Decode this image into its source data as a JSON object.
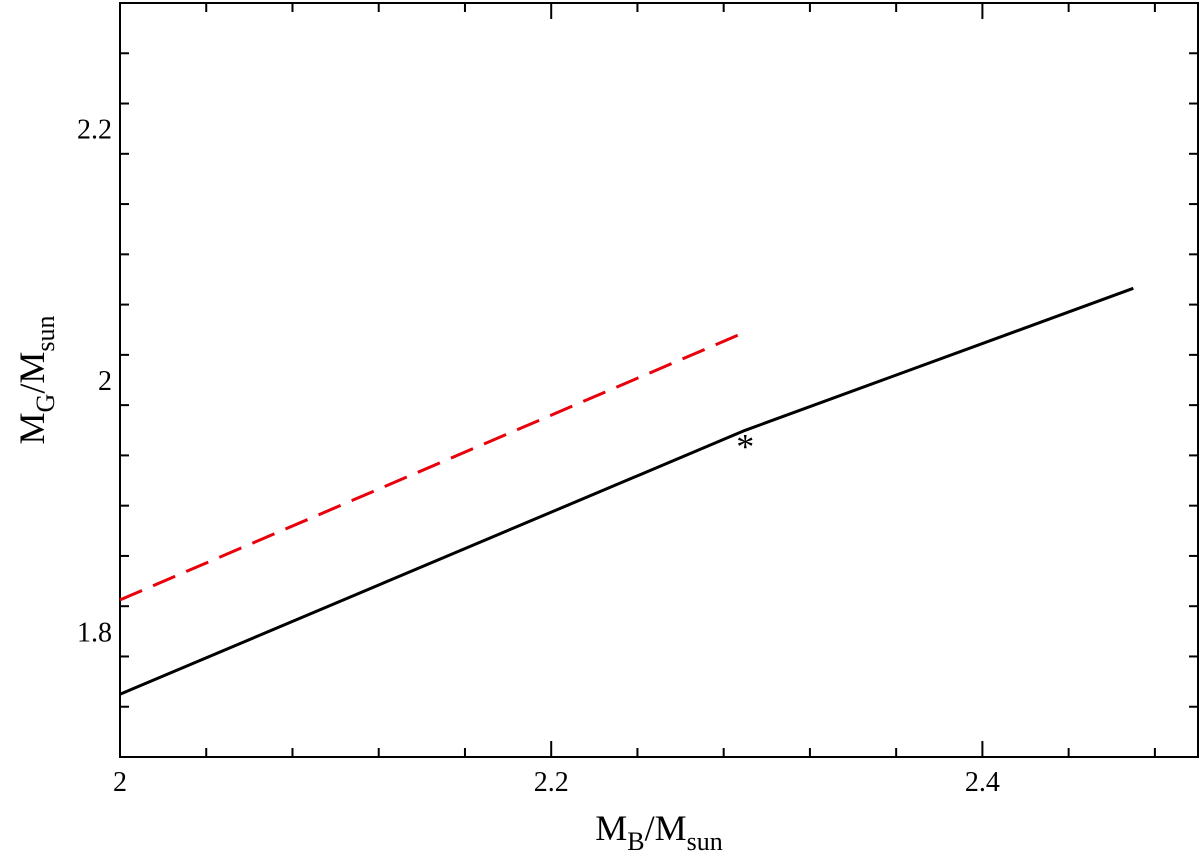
{
  "chart_data": {
    "type": "line",
    "title": "",
    "xlabel": {
      "main": "M",
      "sub": "B",
      "sep": "/M",
      "sub2": "sun"
    },
    "ylabel": {
      "main": "M",
      "sub": "G",
      "sep": "/M",
      "sub2": "sun"
    },
    "xlim": [
      2.0,
      2.5
    ],
    "ylim": [
      1.7,
      2.3
    ],
    "x_major_ticks": [
      2.0,
      2.2,
      2.4
    ],
    "x_tick_labels": [
      "2",
      "2.2",
      "2.4"
    ],
    "x_minor_step": 0.04,
    "y_major_ticks": [
      1.8,
      2.0,
      2.2
    ],
    "y_tick_labels": [
      "1.8",
      "2",
      "2.2"
    ],
    "y_minor_step": 0.04,
    "grid": false,
    "legend": "none",
    "series": [
      {
        "style": "solid",
        "color": "#000000",
        "points": [
          [
            2.0,
            1.75
          ],
          [
            2.29,
            1.96
          ],
          [
            2.47,
            2.073
          ]
        ]
      },
      {
        "style": "dashed",
        "color": "#e8000b",
        "points": [
          [
            2.0,
            1.825
          ],
          [
            2.287,
            2.036
          ]
        ]
      }
    ],
    "markers": [
      {
        "symbol": "*",
        "x": 2.29,
        "y": 1.96,
        "color": "#000000"
      }
    ]
  }
}
